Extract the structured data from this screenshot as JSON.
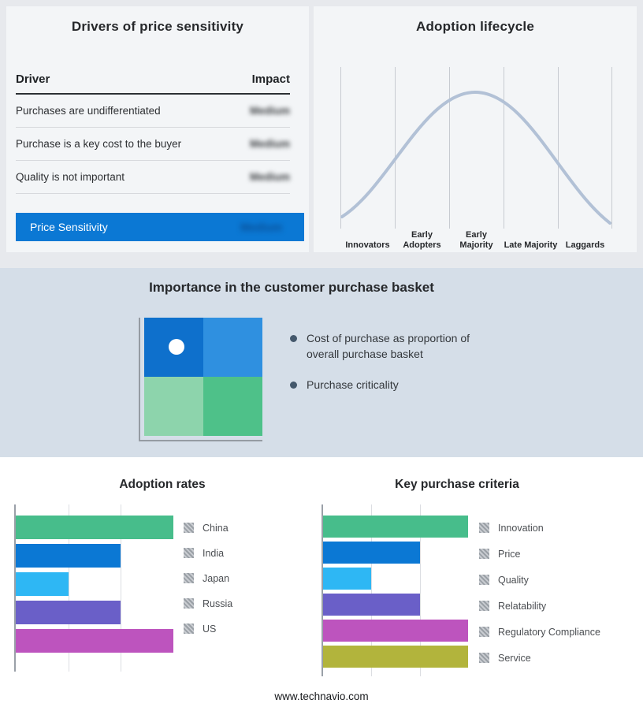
{
  "page": {
    "footer_url": "www.technavio.com"
  },
  "drivers": {
    "title": "Drivers of price sensitivity",
    "columns": {
      "driver": "Driver",
      "impact": "Impact"
    },
    "rows": [
      {
        "driver": "Purchases are undifferentiated",
        "impact": "Medium"
      },
      {
        "driver": "Purchase is a key cost to the buyer",
        "impact": "Medium"
      },
      {
        "driver": "Quality is not important",
        "impact": "Medium"
      }
    ],
    "summary_row": {
      "label": "Price Sensitivity",
      "impact": "Medium",
      "bar_color": "#0b78d4"
    }
  },
  "basket": {
    "title": "Importance in the customer purchase basket",
    "bullets": [
      "Cost of purchase as proportion of overall purchase basket",
      "Purchase criticality"
    ],
    "quadrant_colors": {
      "top_left": "#0e70cc",
      "top_right": "#2f90e0",
      "bottom_left": "#8dd4ac",
      "bottom_right": "#4ec189"
    }
  },
  "chart_data": [
    {
      "type": "line",
      "title": "Adoption lifecycle",
      "shape": "bell-curve",
      "categories": [
        "Innovators",
        "Early Adopters",
        "Early Majority",
        "Late Majority",
        "Laggards"
      ],
      "values": [
        0.1,
        0.6,
        1.0,
        0.6,
        0.1
      ],
      "curve_color": "#b2c1d6",
      "values_scale": "relative curve height, no numeric axis shown"
    },
    {
      "type": "bar",
      "orientation": "horizontal",
      "title": "Adoption rates",
      "categories": [
        "China",
        "India",
        "Japan",
        "Russia",
        "US"
      ],
      "values": [
        3,
        2,
        1,
        2,
        3
      ],
      "xlim": [
        0,
        3
      ],
      "colors": [
        "#47bd8b",
        "#0b78d4",
        "#2eb7f4",
        "#6a5fc8",
        "#bd54be"
      ],
      "values_scale": "relative units read from gridlines, no numeric axis labels shown"
    },
    {
      "type": "bar",
      "orientation": "horizontal",
      "title": "Key purchase criteria",
      "categories": [
        "Innovation",
        "Price",
        "Quality",
        "Relatability",
        "Regulatory Compliance",
        "Service"
      ],
      "values": [
        3,
        2,
        1,
        2,
        3,
        3
      ],
      "xlim": [
        0,
        3
      ],
      "colors": [
        "#47bd8b",
        "#0b78d4",
        "#2eb7f4",
        "#6a5fc8",
        "#bd54be",
        "#b2b43c"
      ],
      "values_scale": "relative units read from gridlines, no numeric axis labels shown"
    }
  ]
}
